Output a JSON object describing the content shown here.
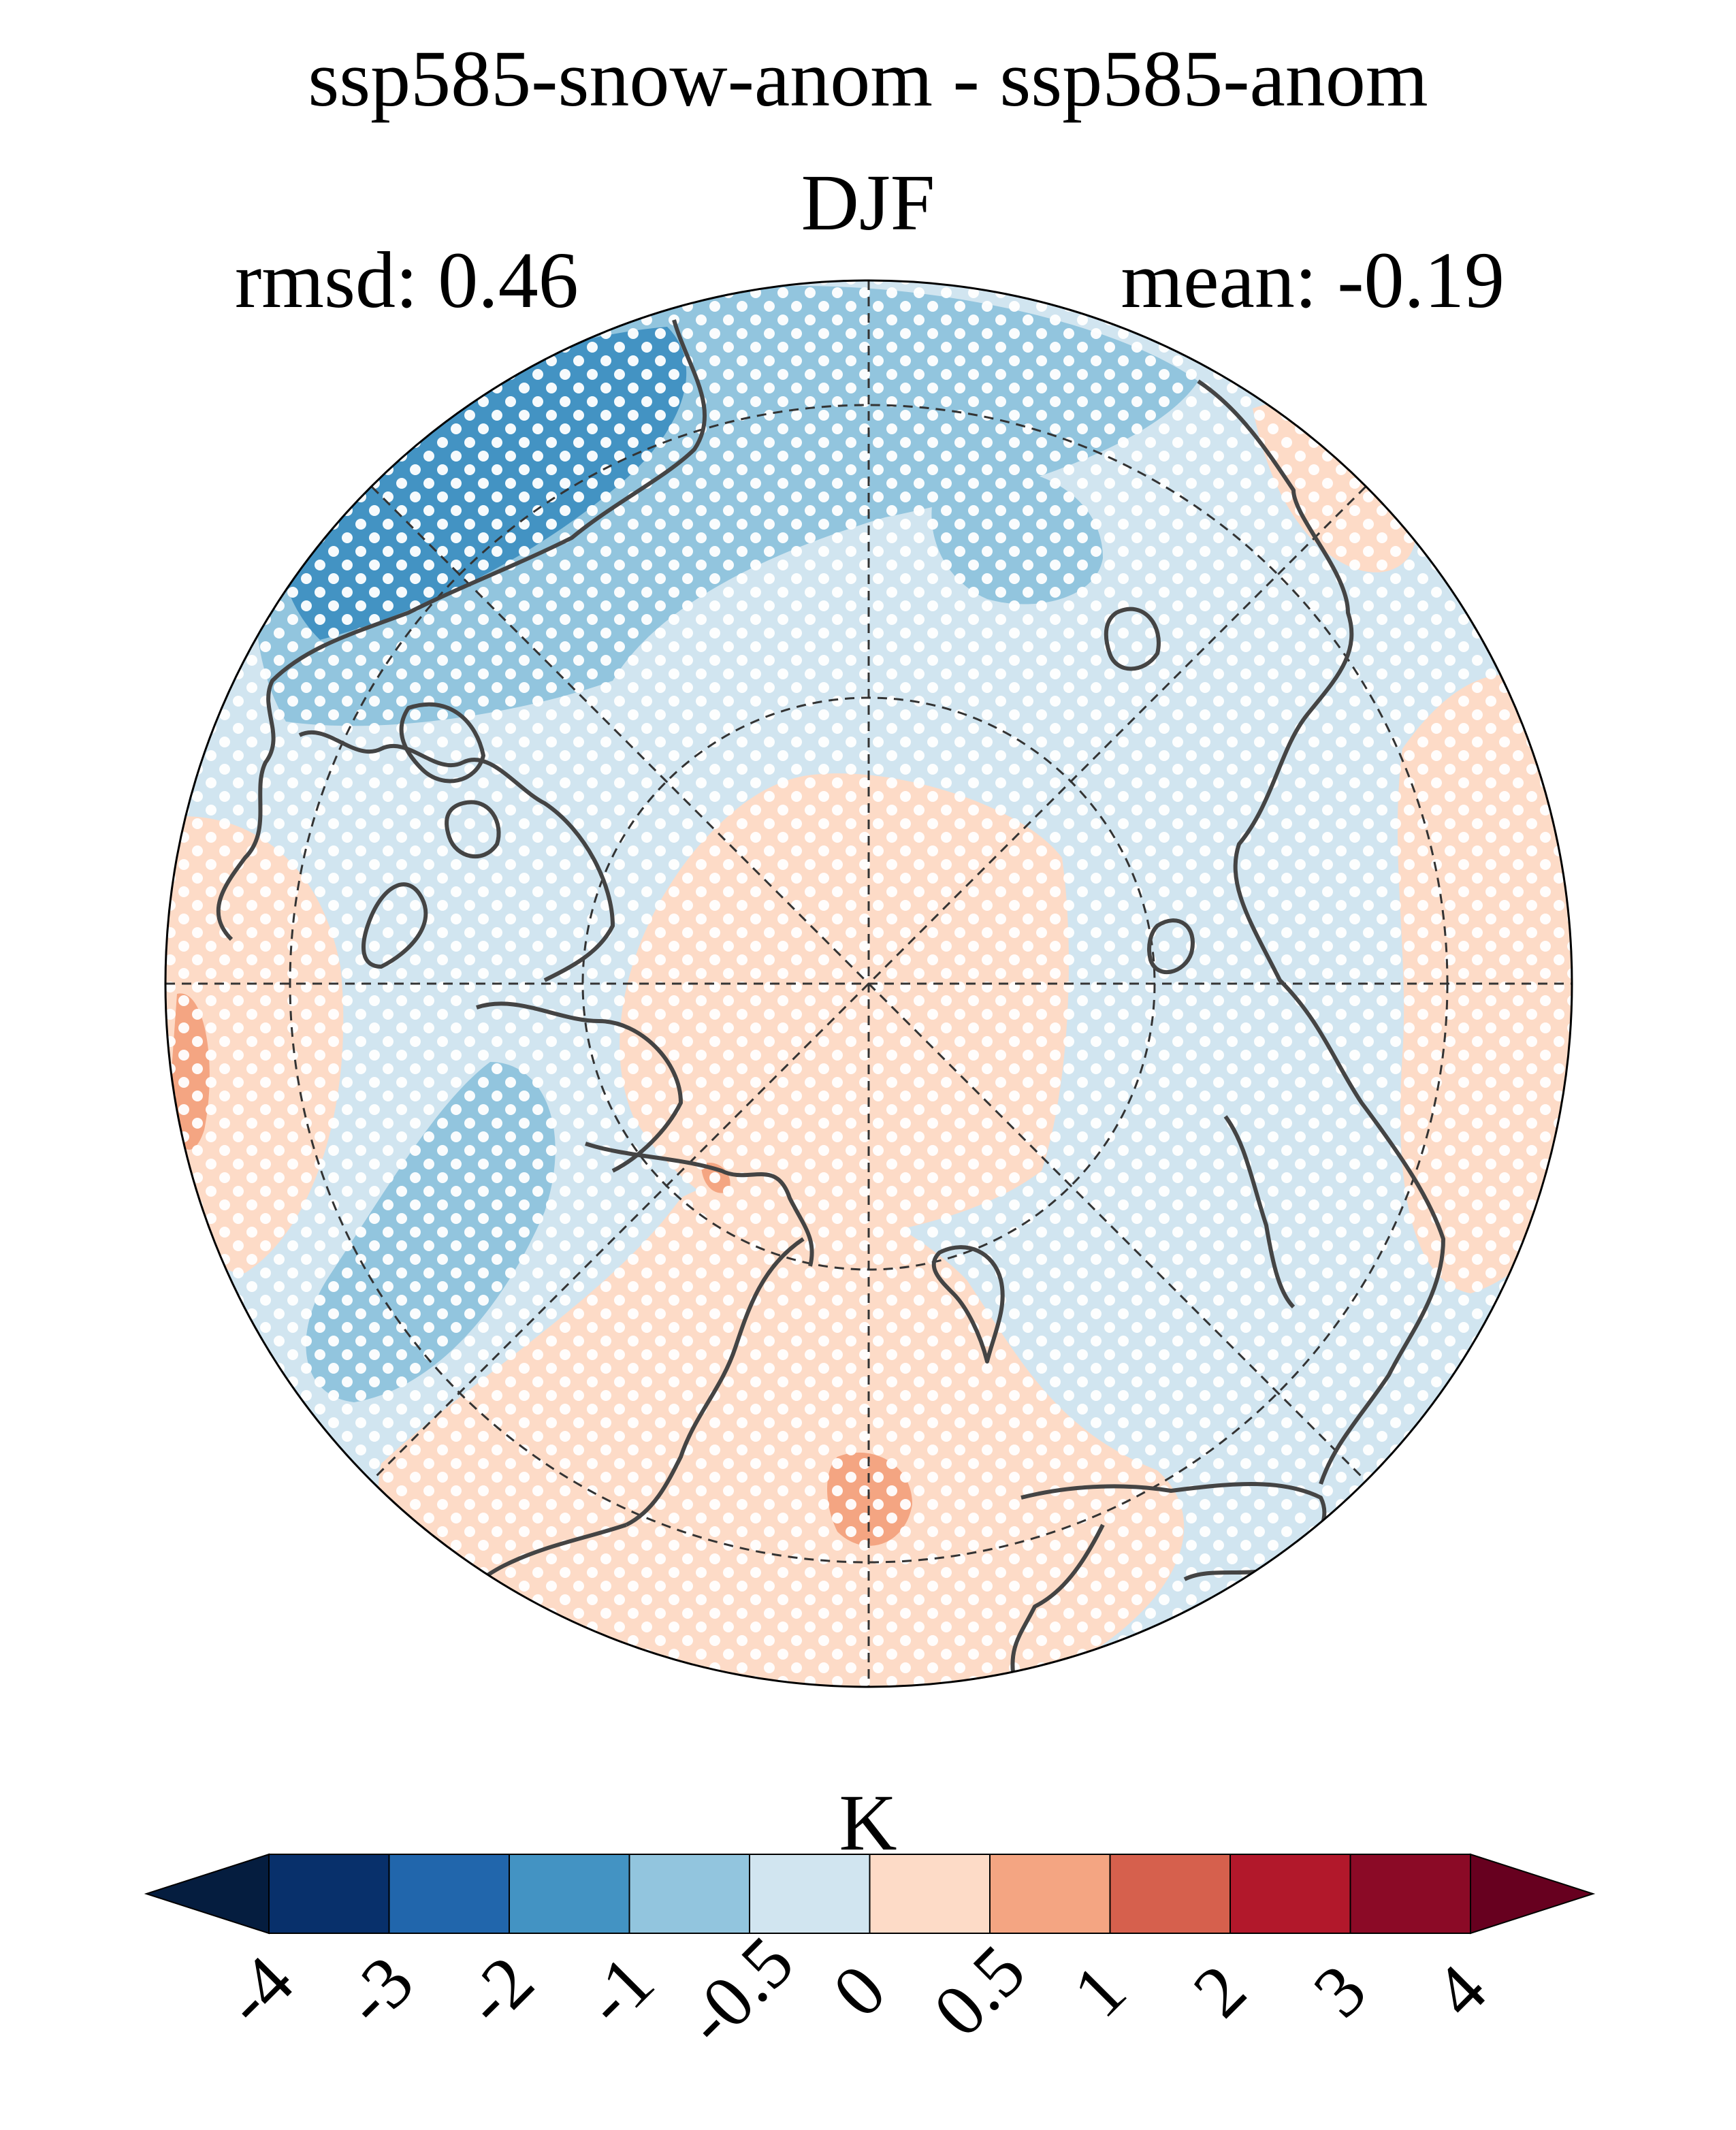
{
  "chart_data": {
    "type": "heatmap",
    "projection": "north-polar-stereographic",
    "title": "ssp585-snow-anom - ssp585-anom",
    "subtitle": "DJF",
    "stats": {
      "rmsd_label": "rmsd: 0.46",
      "mean_label": "mean: -0.19",
      "rmsd": 0.46,
      "mean": -0.19
    },
    "colorbar": {
      "label": "K",
      "extend": "both",
      "levels": [
        -4,
        -3,
        -2,
        -1,
        -0.5,
        0,
        0.5,
        1,
        2,
        3,
        4
      ],
      "tick_labels": [
        "-4",
        "-3",
        "-2",
        "-1",
        "-0.5",
        "0",
        "0.5",
        "1",
        "2",
        "3",
        "4"
      ],
      "colors": [
        "#08306b",
        "#2166ac",
        "#4393c3",
        "#92c5de",
        "#d1e5f0",
        "#fddbc7",
        "#f4a582",
        "#d6604d",
        "#b2182b",
        "#8b0a26"
      ],
      "under_color": "#051d3f",
      "over_color": "#67001f"
    },
    "stippling": "significance dots (white)",
    "gridlines": "dashed lat/lon"
  }
}
